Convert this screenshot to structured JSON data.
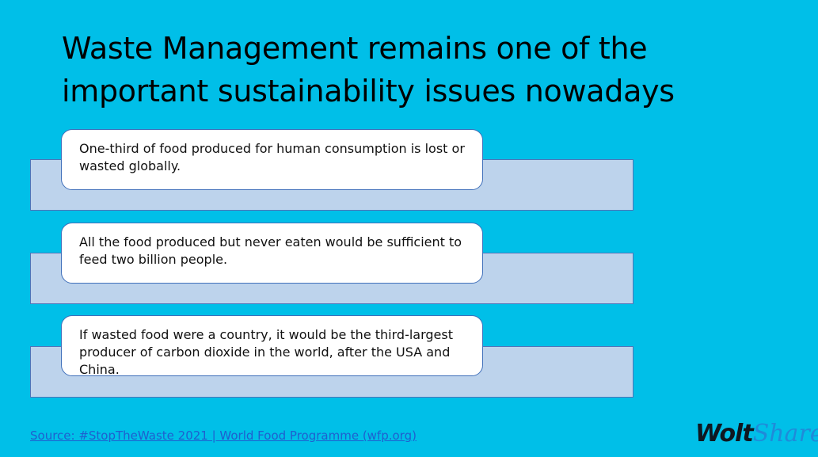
{
  "slide": {
    "title_line1": "Waste Management remains one of the",
    "title_line2": "important sustainability issues nowadays",
    "facts": [
      {
        "text": "One-third of food produced for human consumption is lost or wasted globally."
      },
      {
        "text": "All the food produced but never eaten would be sufficient to feed two billion people."
      },
      {
        "text": "If wasted food were a country, it would be the third-largest producer of carbon dioxide in the world, after the USA and China."
      }
    ],
    "source_link": "Source: #StopTheWaste 2021 | World Food Programme (wfp.org)",
    "logo": {
      "part1": "Wolt",
      "part2": "Share"
    }
  },
  "colors": {
    "background": "#00bfe8",
    "bar_fill": "#bdd3ec",
    "bar_border": "#4e74b8",
    "card_border": "#3f6fba",
    "link": "#1f5fcf",
    "logo_dark": "#0f1720",
    "logo_blue": "#1f8bd9"
  }
}
